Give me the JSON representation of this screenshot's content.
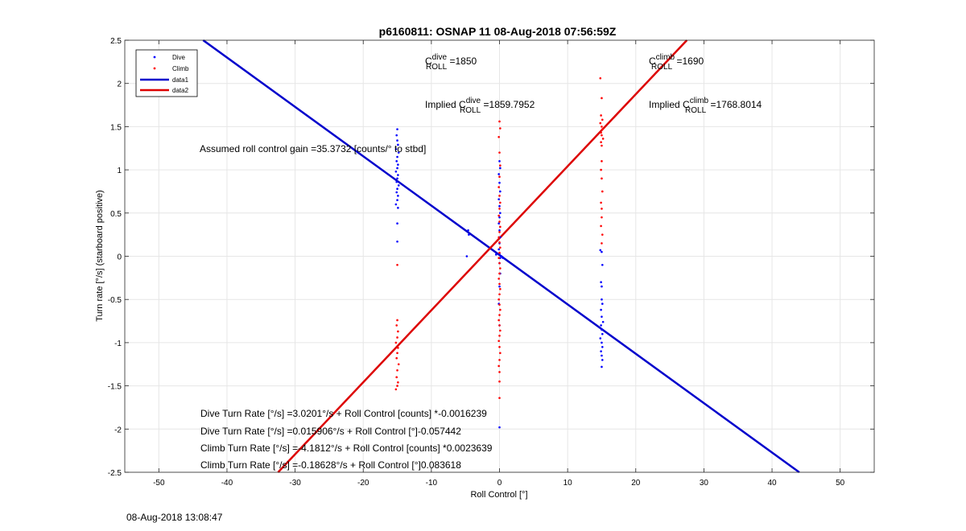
{
  "chart_data": {
    "type": "scatter",
    "title": "p6160811: OSNAP 11 08-Aug-2018 07:56:59Z",
    "xlabel": "Roll Control [°]",
    "ylabel": "Turn rate [°/s] (starboard positive)",
    "xlim": [
      -55,
      55
    ],
    "ylim": [
      -2.5,
      2.5
    ],
    "xticks": [
      -50,
      -40,
      -30,
      -20,
      -10,
      0,
      10,
      20,
      30,
      40,
      50
    ],
    "yticks": [
      -2.5,
      -2,
      -1.5,
      -1,
      -0.5,
      0,
      0.5,
      1,
      1.5,
      2,
      2.5
    ],
    "xtick_labels": [
      "-50",
      "-40",
      "-30",
      "-20",
      "-10",
      "0",
      "10",
      "20",
      "30",
      "40",
      "50"
    ],
    "ytick_labels": [
      "-2.5",
      "-2",
      "-1.5",
      "-1",
      "-0.5",
      "0",
      "0.5",
      "1",
      "1.5",
      "2",
      "2.5"
    ],
    "grid": true,
    "legend_position": "top-left",
    "legend": [
      "Dive",
      "Climb",
      "data1",
      "data2"
    ],
    "series": [
      {
        "name": "Dive",
        "kind": "points",
        "color": "#0000ff",
        "points": [
          [
            -15.0,
            1.47
          ],
          [
            -15.1,
            1.4
          ],
          [
            -15.0,
            1.34
          ],
          [
            -14.9,
            1.29
          ],
          [
            -15.2,
            1.24
          ],
          [
            -14.8,
            1.2
          ],
          [
            -15.0,
            1.15
          ],
          [
            -15.1,
            1.1
          ],
          [
            -14.9,
            1.06
          ],
          [
            -15.0,
            1.02
          ],
          [
            -15.2,
            0.98
          ],
          [
            -14.9,
            0.94
          ],
          [
            -15.0,
            0.9
          ],
          [
            -15.1,
            0.86
          ],
          [
            -14.8,
            0.82
          ],
          [
            -15.0,
            0.78
          ],
          [
            -15.1,
            0.74
          ],
          [
            -14.9,
            0.7
          ],
          [
            -15.0,
            0.65
          ],
          [
            -15.2,
            0.6
          ],
          [
            -14.9,
            0.56
          ],
          [
            -15.0,
            0.38
          ],
          [
            -15.0,
            0.17
          ],
          [
            -4.6,
            0.3
          ],
          [
            -4.5,
            0.25
          ],
          [
            -4.8,
            0.0
          ],
          [
            -0.5,
            0.02
          ],
          [
            0.0,
            1.1
          ],
          [
            0.1,
            1.02
          ],
          [
            -0.1,
            0.95
          ],
          [
            0.0,
            0.85
          ],
          [
            0.1,
            0.75
          ],
          [
            -0.1,
            0.66
          ],
          [
            0.0,
            0.58
          ],
          [
            0.1,
            0.5
          ],
          [
            0.0,
            0.45
          ],
          [
            -0.1,
            0.38
          ],
          [
            0.0,
            0.3
          ],
          [
            0.1,
            0.22
          ],
          [
            0.0,
            0.15
          ],
          [
            -0.1,
            0.08
          ],
          [
            0.0,
            0.03
          ],
          [
            0.1,
            -0.02
          ],
          [
            0.3,
            0.0
          ],
          [
            0.5,
            -0.02
          ],
          [
            0.0,
            -0.08
          ],
          [
            0.1,
            -0.2
          ],
          [
            0.0,
            -0.35
          ],
          [
            -0.1,
            -0.55
          ],
          [
            0.0,
            -0.8
          ],
          [
            0.0,
            -1.98
          ],
          [
            14.8,
            0.07
          ],
          [
            15.0,
            0.05
          ],
          [
            15.1,
            -0.1
          ],
          [
            14.9,
            -0.3
          ],
          [
            15.0,
            -0.35
          ],
          [
            15.0,
            -0.5
          ],
          [
            15.1,
            -0.55
          ],
          [
            14.9,
            -0.62
          ],
          [
            15.0,
            -0.7
          ],
          [
            15.2,
            -0.76
          ],
          [
            14.9,
            -0.8
          ],
          [
            15.0,
            -0.85
          ],
          [
            15.1,
            -0.9
          ],
          [
            14.8,
            -0.95
          ],
          [
            15.0,
            -1.0
          ],
          [
            15.1,
            -1.05
          ],
          [
            14.9,
            -1.1
          ],
          [
            15.0,
            -1.15
          ],
          [
            15.1,
            -1.2
          ],
          [
            15.0,
            -1.28
          ]
        ]
      },
      {
        "name": "Climb",
        "kind": "points",
        "color": "#ff0000",
        "points": [
          [
            -15.0,
            -0.1
          ],
          [
            -15.0,
            -0.74
          ],
          [
            -15.1,
            -0.8
          ],
          [
            -14.9,
            -0.87
          ],
          [
            -15.0,
            -0.94
          ],
          [
            -15.2,
            -1.0
          ],
          [
            -14.9,
            -1.06
          ],
          [
            -15.0,
            -1.12
          ],
          [
            -15.1,
            -1.18
          ],
          [
            -14.8,
            -1.25
          ],
          [
            -15.0,
            -1.32
          ],
          [
            -15.1,
            -1.4
          ],
          [
            -14.9,
            -1.46
          ],
          [
            -15.0,
            -1.5
          ],
          [
            -15.2,
            -1.54
          ],
          [
            0.0,
            1.56
          ],
          [
            0.1,
            1.48
          ],
          [
            -0.1,
            1.38
          ],
          [
            0.0,
            1.2
          ],
          [
            0.1,
            1.05
          ],
          [
            0.0,
            0.92
          ],
          [
            -0.1,
            0.8
          ],
          [
            0.0,
            0.7
          ],
          [
            0.1,
            0.62
          ],
          [
            0.0,
            0.55
          ],
          [
            -0.1,
            0.47
          ],
          [
            0.0,
            0.4
          ],
          [
            0.1,
            0.34
          ],
          [
            0.0,
            0.28
          ],
          [
            -0.1,
            0.22
          ],
          [
            0.0,
            0.16
          ],
          [
            0.1,
            0.1
          ],
          [
            0.0,
            0.04
          ],
          [
            -0.1,
            -0.02
          ],
          [
            0.0,
            -0.08
          ],
          [
            0.1,
            -0.14
          ],
          [
            0.0,
            -0.2
          ],
          [
            -0.1,
            -0.26
          ],
          [
            0.0,
            -0.32
          ],
          [
            0.1,
            -0.38
          ],
          [
            0.0,
            -0.44
          ],
          [
            -0.1,
            -0.5
          ],
          [
            0.0,
            -0.56
          ],
          [
            0.1,
            -0.62
          ],
          [
            0.0,
            -0.68
          ],
          [
            -0.1,
            -0.74
          ],
          [
            0.0,
            -0.8
          ],
          [
            0.1,
            -0.86
          ],
          [
            0.0,
            -0.92
          ],
          [
            -0.1,
            -0.98
          ],
          [
            0.0,
            -1.05
          ],
          [
            0.1,
            -1.12
          ],
          [
            0.0,
            -1.2
          ],
          [
            -0.1,
            -1.27
          ],
          [
            0.0,
            -1.34
          ],
          [
            0.0,
            -1.45
          ],
          [
            0.0,
            -1.64
          ],
          [
            14.8,
            2.06
          ],
          [
            15.0,
            1.83
          ],
          [
            14.9,
            1.63
          ],
          [
            15.1,
            1.58
          ],
          [
            14.8,
            1.54
          ],
          [
            15.0,
            1.5
          ],
          [
            15.1,
            1.47
          ],
          [
            14.9,
            1.43
          ],
          [
            15.0,
            1.4
          ],
          [
            15.2,
            1.36
          ],
          [
            14.9,
            1.32
          ],
          [
            15.0,
            1.28
          ],
          [
            15.0,
            1.1
          ],
          [
            14.9,
            1.0
          ],
          [
            15.0,
            0.9
          ],
          [
            15.1,
            0.75
          ],
          [
            14.9,
            0.62
          ],
          [
            15.0,
            0.55
          ],
          [
            15.0,
            0.45
          ],
          [
            14.9,
            0.35
          ],
          [
            15.1,
            0.25
          ],
          [
            15.0,
            0.15
          ]
        ]
      },
      {
        "name": "data1",
        "kind": "line",
        "color": "#0000cc",
        "x": [
          -43.5,
          44.0
        ],
        "y": [
          2.5,
          -2.5
        ]
      },
      {
        "name": "data2",
        "kind": "line",
        "color": "#dd0000",
        "x": [
          -32.5,
          27.5
        ],
        "y": [
          -2.5,
          2.5
        ]
      }
    ],
    "annotations": {
      "c_dive": {
        "pre": "C",
        "sup": "dive",
        "sub": "ROLL",
        "post": " =1850"
      },
      "c_climb": {
        "pre": "C",
        "sup": "climb",
        "sub": "ROLL",
        "post": " =1690"
      },
      "implied_dive": {
        "pre": "Implied C",
        "sup": "dive",
        "sub": "ROLL",
        "post": " =1859.7952"
      },
      "implied_climb": {
        "pre": "Implied C",
        "sup": "climb",
        "sub": "ROLL",
        "post": " =1768.8014"
      },
      "gain": "Assumed roll control gain =35.3732 [counts/° to stbd]",
      "equations": [
        "Dive Turn Rate [°/s] =3.0201°/s + Roll Control [counts] *-0.0016239",
        "Dive Turn Rate [°/s] =0.015906°/s + Roll Control [°]-0.057442",
        "Climb Turn Rate [°/s] =-4.1812°/s + Roll Control [counts] *0.0023639",
        "Climb Turn Rate [°/s] =-0.18628°/s + Roll Control [°]0.083618"
      ]
    }
  },
  "footer": {
    "timestamp": "08-Aug-2018 13:08:47"
  }
}
